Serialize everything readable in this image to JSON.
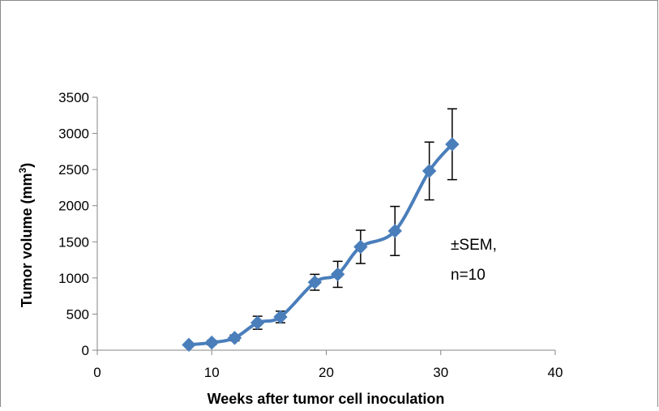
{
  "chart_data": {
    "type": "line",
    "title": "",
    "xlabel": "Weeks after tumor cell inoculation",
    "ylabel": "Tumor volume (mm",
    "ylabel_sup": "3",
    "ylabel_close": ")",
    "xlim": [
      0,
      40
    ],
    "ylim": [
      0,
      3500
    ],
    "xticks": [
      0,
      10,
      20,
      30,
      40
    ],
    "yticks": [
      0,
      500,
      1000,
      1500,
      2000,
      2500,
      3000,
      3500
    ],
    "grid": false,
    "legend": "none",
    "annotation_lines": [
      "±SEM,",
      "n=10"
    ],
    "series": [
      {
        "color": "#4A7EBB",
        "marker": "diamond",
        "smooth": true,
        "x": [
          8,
          10,
          12,
          14,
          16,
          19,
          21,
          23,
          26,
          29,
          31
        ],
        "y": [
          75,
          105,
          170,
          380,
          460,
          940,
          1050,
          1430,
          1650,
          2480,
          2850
        ],
        "err": [
          20,
          30,
          40,
          90,
          80,
          110,
          180,
          230,
          340,
          400,
          490
        ]
      }
    ]
  }
}
